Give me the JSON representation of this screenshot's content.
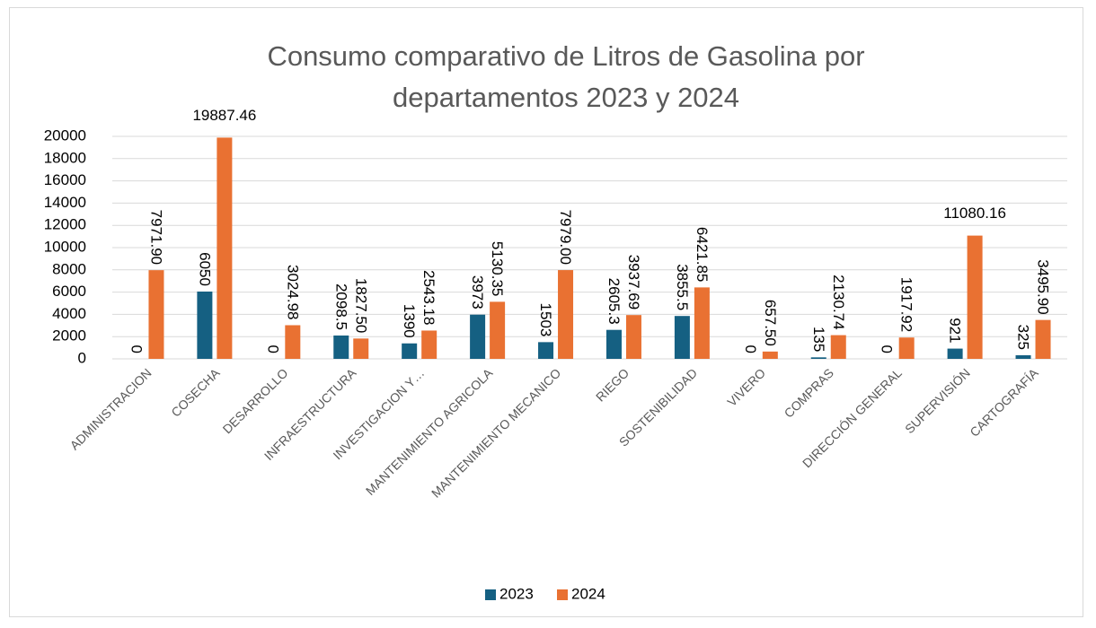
{
  "chart_data": {
    "type": "bar",
    "title": "Consumo comparativo de Litros de Gasolina por departamentos 2023 y 2024",
    "categories": [
      "ADMINISTRACION",
      "COSECHA",
      "DESARROLLO",
      "INFRAESTRUCTURA",
      "INVESTIGACION Y…",
      "MANTENIMIENTO AGRICOLA",
      "MANTENIMIENTO MECANICO",
      "RIEGO",
      "SOSTENIBILIDAD",
      "VIVERO",
      "COMPRAS",
      "DIRECCIÓN GENERAL",
      "SUPERVISIÓN",
      "CARTOGRAFÍA"
    ],
    "series": [
      {
        "name": "2023",
        "color": "#156082",
        "values": [
          0,
          6050,
          0,
          2098.5,
          1390,
          3973,
          1503,
          2605.3,
          3855.5,
          0,
          135,
          0,
          921,
          325
        ]
      },
      {
        "name": "2024",
        "color": "#e97132",
        "values": [
          7971.9,
          19887.46,
          3024.98,
          1827.5,
          2543.18,
          5130.35,
          7979,
          3937.69,
          6421.85,
          657.5,
          2130.74,
          1917.92,
          11080.16,
          3495.9
        ],
        "value_labels": [
          "7971.90",
          "19887.46",
          "3024.98",
          "1827.50",
          "2543.18",
          "5130.35",
          "7979.00",
          "3937.69",
          "6421.85",
          "657.50",
          "2130.74",
          "1917.92",
          "11080.16",
          "3495.90"
        ]
      }
    ],
    "ylim": [
      0,
      20000
    ],
    "yticks": [
      0,
      2000,
      4000,
      6000,
      8000,
      10000,
      12000,
      14000,
      16000,
      18000,
      20000
    ],
    "grid": true,
    "legend": "bottom"
  }
}
